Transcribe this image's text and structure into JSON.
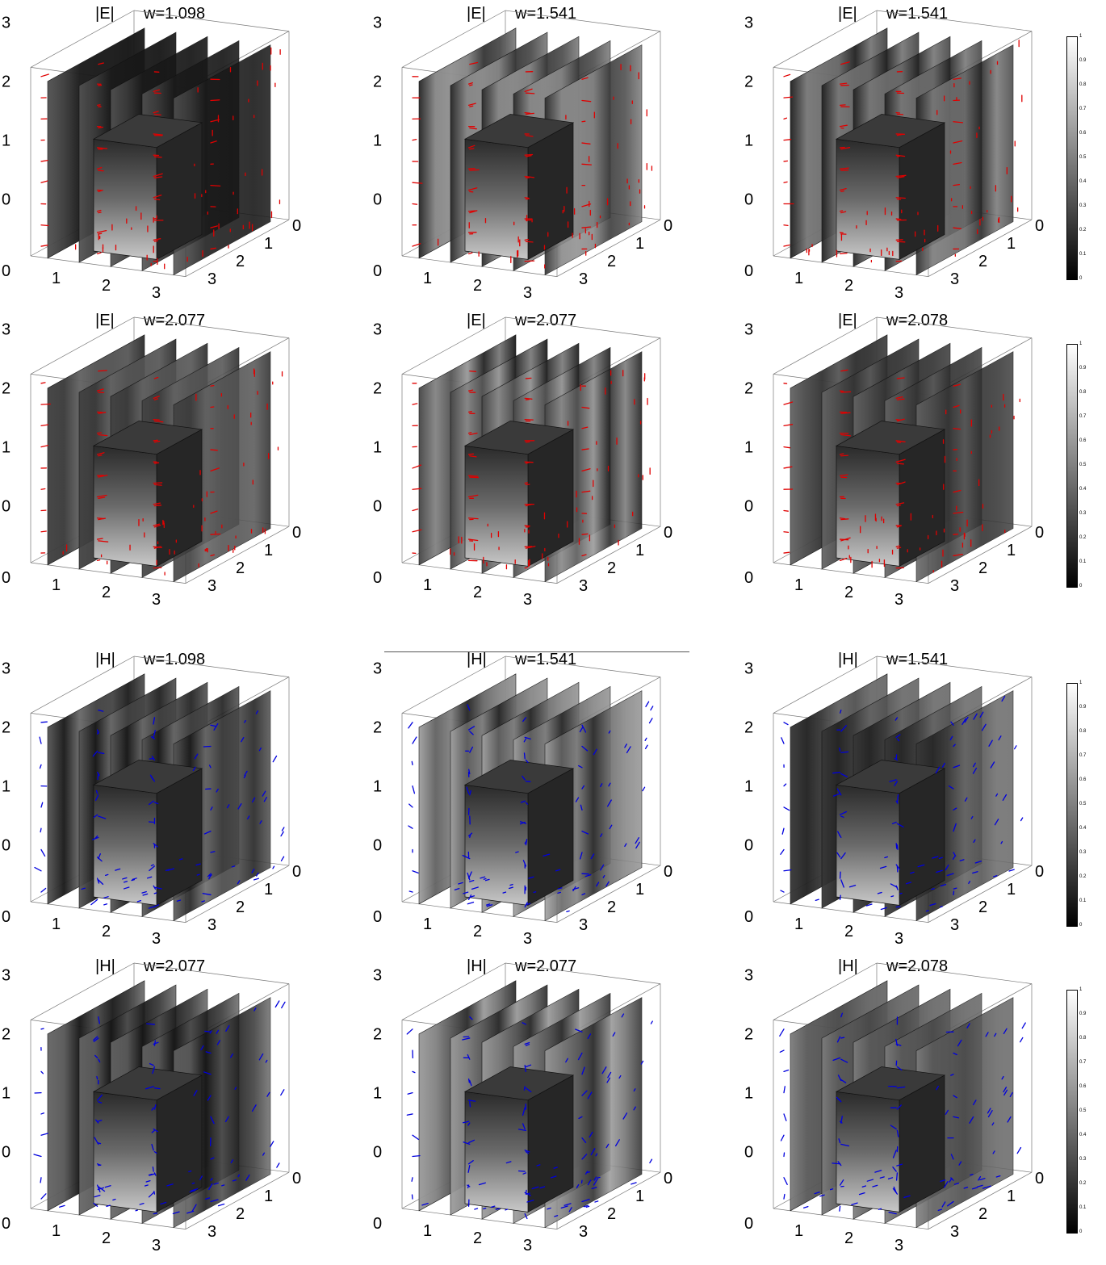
{
  "panels": [
    {
      "quantity": "|E|",
      "w": "w=1.098",
      "vector_color": "#e00000"
    },
    {
      "quantity": "|E|",
      "w": "w=1.541",
      "vector_color": "#e00000"
    },
    {
      "quantity": "|E|",
      "w": "w=1.541",
      "vector_color": "#e00000"
    },
    {
      "quantity": "|E|",
      "w": "w=2.077",
      "vector_color": "#e00000"
    },
    {
      "quantity": "|E|",
      "w": "w=2.077",
      "vector_color": "#e00000"
    },
    {
      "quantity": "|E|",
      "w": "w=2.078",
      "vector_color": "#e00000"
    },
    {
      "quantity": "|H|",
      "w": "w=1.098",
      "vector_color": "#0000dd"
    },
    {
      "quantity": "|H|",
      "w": "w=1.541",
      "vector_color": "#0000dd"
    },
    {
      "quantity": "|H|",
      "w": "w=1.541",
      "vector_color": "#0000dd"
    },
    {
      "quantity": "|H|",
      "w": "w=2.077",
      "vector_color": "#0000dd"
    },
    {
      "quantity": "|H|",
      "w": "w=2.077",
      "vector_color": "#0000dd"
    },
    {
      "quantity": "|H|",
      "w": "w=2.078",
      "vector_color": "#0000dd"
    }
  ],
  "axes": {
    "vertical_ticks": [
      "0",
      "1",
      "2",
      "3"
    ],
    "x_ticks": [
      "0",
      "1",
      "2",
      "3"
    ],
    "y_ticks": [
      "3",
      "2",
      "1",
      "0"
    ]
  },
  "colorbar": {
    "ticks": [
      "0",
      "0.1",
      "0.2",
      "0.3",
      "0.4",
      "0.5",
      "0.6",
      "0.7",
      "0.8",
      "0.9",
      "1"
    ],
    "colormap": "grayscale"
  }
}
